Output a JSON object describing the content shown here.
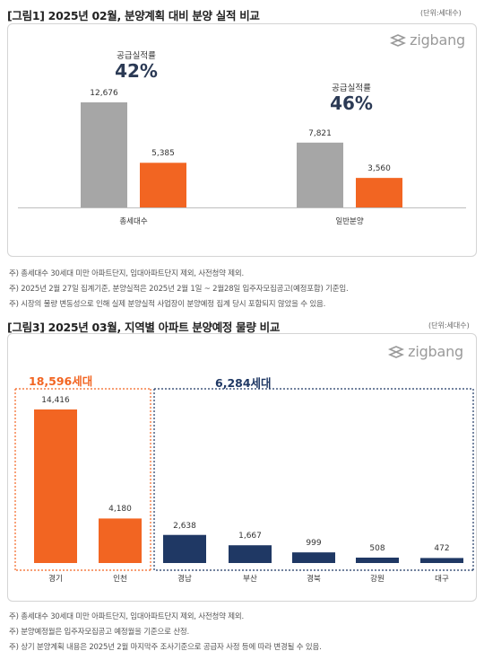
{
  "figure1": {
    "title": "[그림1] 2025년 02월, 분양계획 대비 분양 실적 비교",
    "unit": "(단위:세대수)",
    "logo": "zigbang",
    "rates": [
      {
        "label": "공급실적률",
        "value": "42%"
      },
      {
        "label": "공급실적률",
        "value": "46%"
      }
    ],
    "notes": [
      "주) 총세대수 30세대 미만 아파트단지, 임대아파트단지 제외, 사전청약 제외.",
      "주) 2025년 2월 27일 집계기준, 분양실적은 2025년 2월 1일 ~ 2월28일 입주자모집공고(예정포함) 기준임.",
      "주) 시장의 물량 변동성으로 인해 실제 분양실적 사업장이 분양예정 집계 당시 포함되지 않았을 수 있음."
    ]
  },
  "figure3": {
    "title": "[그림3] 2025년 03월, 지역별 아파트 분양예정 물량 비교",
    "unit": "(단위:세대수)",
    "logo": "zigbang",
    "group_labels": [
      {
        "text": "18,596세대",
        "color": "#f26522"
      },
      {
        "text": "6,284세대",
        "color": "#1f3864"
      }
    ],
    "notes": [
      "주) 총세대수 30세대 미만 아파트단지, 임대아파트단지 제외, 사전청약 제외.",
      "주) 분양예정월은 입주자모집공고 예정월을 기준으로 산정.",
      "주) 상기 분양계획 내용은 2025년 2월 마지막주 조사기준으로 공급자 사정 등에 따라 변경될 수 있음."
    ]
  },
  "colors": {
    "gray": "#a6a6a6",
    "orange": "#f26522",
    "navy": "#1f3864"
  },
  "chart_data": [
    {
      "type": "bar",
      "categories": [
        "총세대수",
        "일반분양"
      ],
      "series": [
        {
          "values": [
            12676,
            7821
          ],
          "color": "#a6a6a6"
        },
        {
          "values": [
            5385,
            3560
          ],
          "color": "#f26522"
        }
      ],
      "value_labels": [
        [
          "12,676",
          "7,821"
        ],
        [
          "5,385",
          "3,560"
        ]
      ],
      "ylim": [
        0,
        13000
      ]
    },
    {
      "type": "bar",
      "categories": [
        "경기",
        "인천",
        "경남",
        "부산",
        "경북",
        "강원",
        "대구"
      ],
      "values": [
        14416,
        4180,
        2638,
        1667,
        999,
        508,
        472
      ],
      "value_labels": [
        "14,416",
        "4,180",
        "2,638",
        "1,667",
        "999",
        "508",
        "472"
      ],
      "colors": [
        "#f26522",
        "#f26522",
        "#1f3864",
        "#1f3864",
        "#1f3864",
        "#1f3864",
        "#1f3864"
      ],
      "ylim": [
        0,
        14500
      ]
    }
  ]
}
